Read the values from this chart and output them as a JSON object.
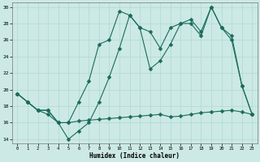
{
  "xlabel": "Humidex (Indice chaleur)",
  "background_color": "#cce9e5",
  "grid_color": "#b0d8d4",
  "line_color": "#1a6b5a",
  "xlim": [
    -0.5,
    23.5
  ],
  "ylim": [
    13.5,
    30.5
  ],
  "yticks": [
    14,
    16,
    18,
    20,
    22,
    24,
    26,
    28,
    30
  ],
  "xticks": [
    0,
    1,
    2,
    3,
    4,
    5,
    6,
    7,
    8,
    9,
    10,
    11,
    12,
    13,
    14,
    15,
    16,
    17,
    18,
    19,
    20,
    21,
    22,
    23
  ],
  "line1_x": [
    0,
    1,
    2,
    3,
    4,
    5,
    6,
    7,
    8,
    9,
    10,
    11,
    12,
    13,
    14,
    15,
    16,
    17,
    18,
    19,
    20,
    21,
    22,
    23
  ],
  "line1_y": [
    19.5,
    18.5,
    17.5,
    17.5,
    16.0,
    16.0,
    18.5,
    21.0,
    25.5,
    26.0,
    29.5,
    29.0,
    27.5,
    27.0,
    25.0,
    27.5,
    28.0,
    28.5,
    27.0,
    30.0,
    27.5,
    26.5,
    20.5,
    17.0
  ],
  "line2_x": [
    0,
    1,
    2,
    3,
    4,
    5,
    6,
    7,
    8,
    9,
    10,
    11,
    12,
    13,
    14,
    15,
    16,
    17,
    18,
    19,
    20,
    21,
    22,
    23
  ],
  "line2_y": [
    19.5,
    18.5,
    17.5,
    17.5,
    16.0,
    14.0,
    15.0,
    16.0,
    18.5,
    21.5,
    25.0,
    29.0,
    27.5,
    22.5,
    23.5,
    25.5,
    28.0,
    28.0,
    26.5,
    30.0,
    27.5,
    26.0,
    20.5,
    17.0
  ],
  "line3_x": [
    0,
    1,
    2,
    3,
    4,
    5,
    6,
    7,
    8,
    9,
    10,
    11,
    12,
    13,
    14,
    15,
    16,
    17,
    18,
    19,
    20,
    21,
    22,
    23
  ],
  "line3_y": [
    19.5,
    18.5,
    17.5,
    17.0,
    16.0,
    16.0,
    16.2,
    16.3,
    16.4,
    16.5,
    16.6,
    16.7,
    16.8,
    16.9,
    17.0,
    16.7,
    16.8,
    17.0,
    17.2,
    17.3,
    17.4,
    17.5,
    17.3,
    17.0
  ]
}
